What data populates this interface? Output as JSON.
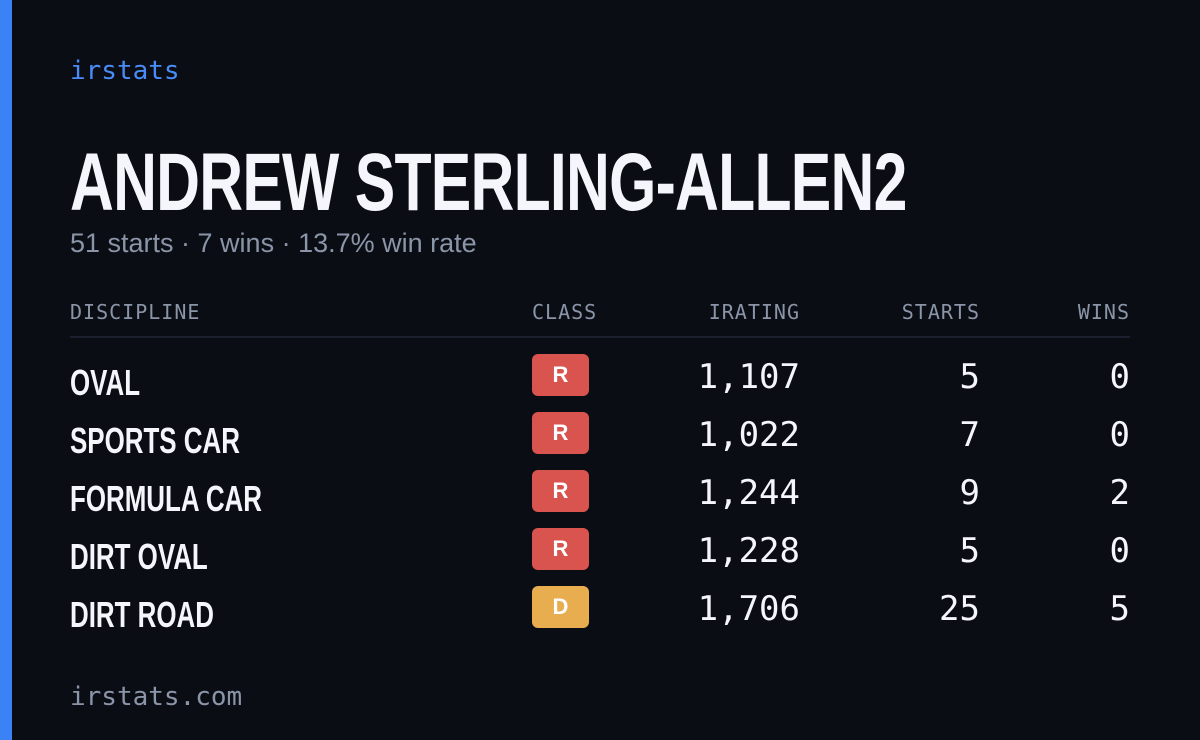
{
  "brand": "irstats",
  "driver": {
    "name": "ANDREW STERLING-ALLEN2",
    "summary": "51 starts · 7 wins · 13.7% win rate"
  },
  "table": {
    "columns": [
      "DISCIPLINE",
      "CLASS",
      "IRATING",
      "STARTS",
      "WINS"
    ],
    "rows": [
      {
        "discipline": "OVAL",
        "class": "R",
        "class_color": "#d9534f",
        "irating": "1,107",
        "starts": 5,
        "wins": 0
      },
      {
        "discipline": "SPORTS CAR",
        "class": "R",
        "class_color": "#d9534f",
        "irating": "1,022",
        "starts": 7,
        "wins": 0
      },
      {
        "discipline": "FORMULA CAR",
        "class": "R",
        "class_color": "#d9534f",
        "irating": "1,244",
        "starts": 9,
        "wins": 2
      },
      {
        "discipline": "DIRT OVAL",
        "class": "R",
        "class_color": "#d9534f",
        "irating": "1,228",
        "starts": 5,
        "wins": 0
      },
      {
        "discipline": "DIRT ROAD",
        "class": "D",
        "class_color": "#e8ad4f",
        "irating": "1,706",
        "starts": 25,
        "wins": 5
      }
    ]
  },
  "footer": "irstats.com"
}
